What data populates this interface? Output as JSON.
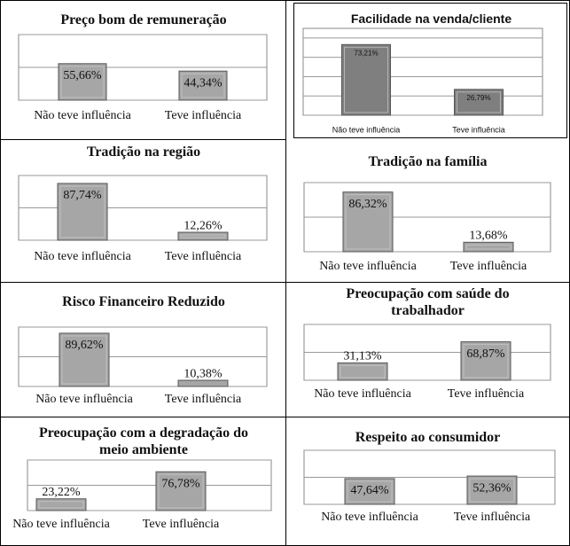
{
  "chart_data": [
    {
      "type": "bar",
      "title": "Preço bom de remuneração",
      "categories": [
        "Não teve influência",
        "Teve influência"
      ],
      "values": [
        55.66,
        44.34
      ],
      "value_labels": [
        "55,66%",
        "44,34%"
      ],
      "color": "#a6a6a6",
      "ylim": [
        0,
        100
      ],
      "yticks": [
        0,
        50,
        100
      ],
      "grid": true
    },
    {
      "type": "bar",
      "title": "Facilidade na venda/cliente",
      "categories": [
        "Não teve influência",
        "Teve influência"
      ],
      "values": [
        73.21,
        26.79
      ],
      "value_labels": [
        "73,21%",
        "26,79%"
      ],
      "color": "#7f7f7f",
      "ylim": [
        0,
        90
      ],
      "yticks": [
        0,
        20,
        40,
        60,
        80
      ],
      "grid": true
    },
    {
      "type": "bar",
      "title": "Tradição na região",
      "categories": [
        "Não teve influência",
        "Teve influência"
      ],
      "values": [
        87.74,
        12.26
      ],
      "value_labels": [
        "87,74%",
        "12,26%"
      ],
      "color": "#a6a6a6",
      "ylim": [
        0,
        100
      ],
      "yticks": [
        0,
        50,
        100
      ],
      "grid": true
    },
    {
      "type": "bar",
      "title": "Tradição na família",
      "categories": [
        "Não teve influência",
        "Teve influência"
      ],
      "values": [
        86.32,
        13.68
      ],
      "value_labels": [
        "86,32%",
        "13,68%"
      ],
      "color": "#a6a6a6",
      "ylim": [
        0,
        100
      ],
      "yticks": [
        0,
        50,
        100
      ],
      "grid": true
    },
    {
      "type": "bar",
      "title": "Risco Financeiro Reduzido",
      "categories": [
        "Não teve influência",
        "Teve influência"
      ],
      "values": [
        89.62,
        10.38
      ],
      "value_labels": [
        "89,62%",
        "10,38%"
      ],
      "color": "#a6a6a6",
      "ylim": [
        0,
        100
      ],
      "yticks": [
        0,
        50,
        100
      ],
      "grid": true
    },
    {
      "type": "bar",
      "title": "Preocupação com saúde do trabalhador",
      "categories": [
        "Não teve influência",
        "Teve influência"
      ],
      "values": [
        31.13,
        68.87
      ],
      "value_labels": [
        "31,13%",
        "68,87%"
      ],
      "color": "#a6a6a6",
      "ylim": [
        0,
        100
      ],
      "yticks": [
        0,
        50,
        100
      ],
      "grid": true
    },
    {
      "type": "bar",
      "title": "Preocupação com a degradação do meio ambiente",
      "categories": [
        "Não teve influência",
        "Teve influência"
      ],
      "values": [
        23.22,
        76.78
      ],
      "value_labels": [
        "23,22%",
        "76,78%"
      ],
      "color": "#a6a6a6",
      "ylim": [
        0,
        100
      ],
      "yticks": [
        0,
        50,
        100
      ],
      "grid": true
    },
    {
      "type": "bar",
      "title": "Respeito ao consumidor",
      "categories": [
        "Não teve influência",
        "Teve influência"
      ],
      "values": [
        47.64,
        52.36
      ],
      "value_labels": [
        "47,64%",
        "52,36%"
      ],
      "color": "#a6a6a6",
      "ylim": [
        0,
        100
      ],
      "yticks": [
        0,
        50,
        100
      ],
      "grid": true
    }
  ]
}
